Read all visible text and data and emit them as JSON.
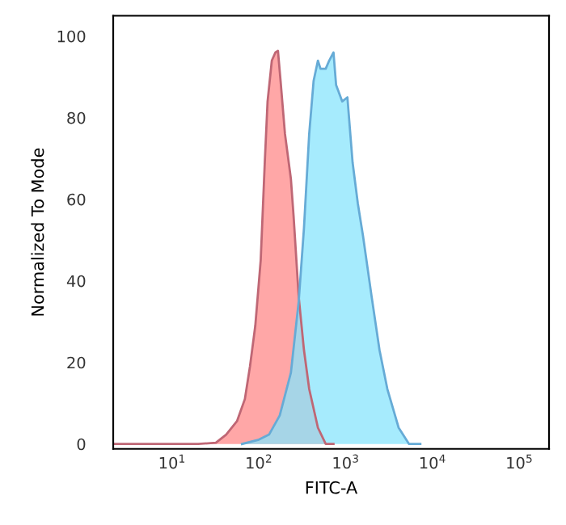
{
  "chart_data": {
    "type": "area",
    "xlabel": "FITC-A",
    "ylabel": "Normalized To Mode",
    "log": "x",
    "xlim": [
      2.1,
      220000
    ],
    "ylim": [
      -1.2,
      105
    ],
    "xticks": [
      {
        "value": 10,
        "label": "10$^{1}$"
      },
      {
        "value": 100,
        "label": "10$^{2}$"
      },
      {
        "value": 1000,
        "label": "10$^{3}$"
      },
      {
        "value": 10000,
        "label": "10$^{4}$"
      },
      {
        "value": 100000,
        "label": "10$^{5}$"
      }
    ],
    "yticks": [
      0,
      20,
      40,
      60,
      80,
      100
    ],
    "grid": false,
    "legend": false,
    "series": [
      {
        "color": "#ff8a8a",
        "x": [
          2.1,
          6.5,
          20,
          32,
          42,
          56,
          69,
          79,
          91,
          105,
          117,
          126,
          141,
          155,
          166,
          178,
          200,
          234,
          251,
          288,
          331,
          380,
          479,
          589,
          724
        ],
        "values": [
          0,
          0,
          0,
          0.3,
          2.3,
          5.6,
          11,
          19,
          29,
          45,
          69,
          84,
          94,
          96,
          96.4,
          89,
          76,
          65,
          56,
          36,
          23,
          13.5,
          4,
          0,
          0
        ]
      },
      {
        "color": "#88e4fc",
        "x": [
          64,
          98,
          131,
          174,
          234,
          288,
          331,
          380,
          427,
          479,
          513,
          589,
          646,
          724,
          776,
          912,
          1047,
          1202,
          1380,
          1585,
          1995,
          2455,
          3020,
          4074,
          5370,
          7244
        ],
        "values": [
          0,
          1,
          2.3,
          7,
          17.5,
          35,
          53,
          76,
          89,
          94,
          92,
          92,
          94,
          96,
          88,
          84,
          85,
          69,
          59,
          51,
          36,
          23,
          13.5,
          4,
          0,
          0
        ]
      }
    ]
  }
}
